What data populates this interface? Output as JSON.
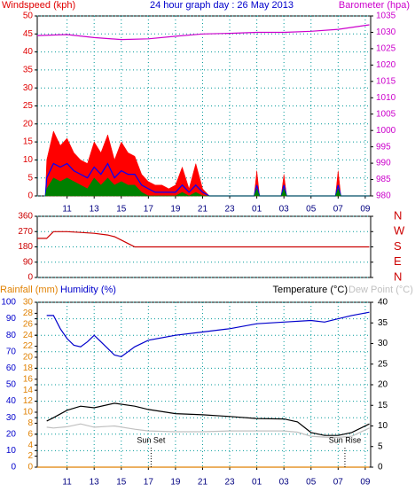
{
  "chart_data": [
    {
      "type": "line",
      "title": "24 hour graph day : 26 May 2013",
      "ylabel": "Windspeed (kph)",
      "y2label": "Barometer (hpa)",
      "ycolor": "#e00000",
      "y2color": "#cc00cc",
      "grid": true,
      "xlim": [
        8.8,
        33.4
      ],
      "xticks": [
        11,
        13,
        15,
        17,
        19,
        21,
        23,
        {
          "value": 25,
          "label": "01"
        },
        {
          "value": 27,
          "label": "03"
        },
        {
          "value": 29,
          "label": "05"
        },
        {
          "value": 31,
          "label": "07"
        },
        {
          "value": 33,
          "label": "09"
        }
      ],
      "ylim": [
        0,
        50
      ],
      "yticks": [
        0,
        5,
        10,
        15,
        20,
        25,
        30,
        35,
        40,
        45,
        50
      ],
      "y2lim": [
        980,
        1035
      ],
      "y2ticks": [
        980,
        985,
        990,
        995,
        1000,
        1005,
        1010,
        1015,
        1020,
        1025,
        1030,
        1035
      ],
      "series": [
        {
          "color": "#ff0000",
          "style": "area",
          "x": [
            9.4,
            9.5,
            10,
            10.5,
            11,
            11.5,
            12,
            12.5,
            13,
            13.5,
            14,
            14.5,
            15,
            15.5,
            16,
            16.5,
            17,
            17.5,
            18,
            18.5,
            19,
            19.5,
            20,
            20.5,
            21,
            21.5,
            22,
            24.8,
            25,
            25.2,
            26.8,
            27,
            27.2,
            30.8,
            31,
            31.2,
            33.3
          ],
          "values": [
            0,
            10,
            18,
            14,
            16,
            12,
            10,
            9,
            15,
            12,
            17,
            10,
            15,
            12,
            11,
            6,
            4,
            3,
            3,
            2,
            3,
            8,
            2,
            9,
            2,
            0,
            0,
            0,
            7,
            0,
            0,
            6,
            0,
            0,
            7,
            0,
            0
          ]
        },
        {
          "color": "#0000ff",
          "style": "line",
          "x": [
            9.4,
            9.5,
            10,
            10.5,
            11,
            11.5,
            12,
            12.5,
            13,
            13.5,
            14,
            14.5,
            15,
            15.5,
            16,
            16.5,
            17,
            17.5,
            18,
            18.5,
            19,
            19.5,
            20,
            20.5,
            21,
            21.5,
            22,
            24.8,
            25,
            25.2,
            26.8,
            27,
            27.2,
            30.8,
            31,
            31.2,
            33.3
          ],
          "values": [
            0,
            5,
            9,
            8,
            9,
            7,
            6,
            5,
            8,
            6,
            9,
            5,
            7,
            6,
            6,
            3,
            2,
            1,
            1,
            1,
            1,
            3,
            1,
            3,
            1,
            0,
            0,
            0,
            3,
            0,
            0,
            3,
            0,
            0,
            3,
            0,
            0
          ]
        },
        {
          "color": "#008000",
          "style": "area",
          "x": [
            9.4,
            9.5,
            10,
            10.5,
            11,
            11.5,
            12,
            12.5,
            13,
            13.5,
            14,
            14.5,
            15,
            15.5,
            16,
            16.5,
            17,
            17.5,
            18,
            18.5,
            19,
            19.5,
            20,
            20.5,
            21,
            21.5,
            22,
            24.8,
            25,
            25.2,
            26.8,
            27,
            27.2,
            30.8,
            31,
            31.2,
            33.3
          ],
          "values": [
            0,
            2,
            5,
            4,
            5,
            4,
            3,
            2,
            5,
            3,
            5,
            3,
            4,
            3,
            3,
            1,
            0,
            0,
            0,
            0,
            0,
            1,
            0,
            1,
            0,
            0,
            0,
            0,
            2,
            0,
            0,
            2,
            0,
            0,
            2,
            0,
            0
          ]
        },
        {
          "color": "#cc00cc",
          "style": "line",
          "axis": "y2",
          "x": [
            8.8,
            11,
            13,
            15,
            17,
            19,
            21,
            23,
            25,
            27,
            29,
            31,
            33.3
          ],
          "values": [
            1029,
            1029.3,
            1028.4,
            1027.8,
            1028,
            1028.8,
            1029.5,
            1029.7,
            1030,
            1030,
            1030.3,
            1030.9,
            1032.3
          ]
        }
      ]
    },
    {
      "type": "line",
      "ycolor": "#cc0000",
      "y2color": "#cc0000",
      "grid": true,
      "xlim": [
        8.8,
        33.4
      ],
      "ylim": [
        0,
        360
      ],
      "yticks": [
        0,
        90,
        180,
        270,
        360
      ],
      "y2lim": [
        0,
        360
      ],
      "y2ticks": [
        {
          "value": 360,
          "label": "N"
        },
        {
          "value": 270,
          "label": "W"
        },
        {
          "value": 180,
          "label": "S"
        },
        {
          "value": 90,
          "label": "E"
        },
        {
          "value": 0,
          "label": "N"
        }
      ],
      "series": [
        {
          "color": "#cc0000",
          "style": "line",
          "x": [
            8.8,
            9.5,
            10,
            11,
            12,
            13,
            14,
            14.5,
            15,
            15.5,
            16,
            17,
            19,
            33.3
          ],
          "values": [
            230,
            230,
            270,
            270,
            265,
            260,
            250,
            240,
            220,
            200,
            180,
            180,
            180,
            180
          ]
        }
      ]
    },
    {
      "type": "line",
      "ycolor": "#0000cc",
      "y2color": "#000000",
      "y3color": "#e08000",
      "grid": true,
      "xlim": [
        8.8,
        33.4
      ],
      "xticks": [
        11,
        13,
        15,
        17,
        19,
        21,
        23,
        {
          "value": 25,
          "label": "01"
        },
        {
          "value": 27,
          "label": "03"
        },
        {
          "value": 29,
          "label": "05"
        },
        {
          "value": 31,
          "label": "07"
        },
        {
          "value": 33,
          "label": "09"
        }
      ],
      "ylim": [
        0,
        100
      ],
      "yticks": [
        0,
        10,
        20,
        30,
        40,
        50,
        60,
        70,
        80,
        90,
        100
      ],
      "y2lim": [
        0,
        40
      ],
      "y2ticks": [
        0,
        5,
        10,
        15,
        20,
        25,
        30,
        35,
        40
      ],
      "y3lim": [
        0,
        30
      ],
      "y3ticks": [
        0,
        2,
        4,
        6,
        8,
        10,
        12,
        14,
        16,
        18,
        20,
        22,
        24,
        26,
        28,
        30
      ],
      "series": [
        {
          "name": "Rainfall (mm)",
          "color": "#e08000",
          "style": "line",
          "axis": "y3",
          "x": [
            8.8,
            33.3
          ],
          "values": [
            0,
            0
          ]
        },
        {
          "name": "Humidity (%)",
          "color": "#0000cc",
          "style": "line",
          "x": [
            9.5,
            10,
            10.5,
            11,
            11.5,
            12,
            12.5,
            13,
            13.5,
            14,
            14.5,
            15,
            16,
            17,
            19,
            21,
            23,
            25,
            27,
            29,
            30,
            31,
            32,
            33.3
          ],
          "values": [
            92,
            92,
            84,
            78,
            74,
            73,
            76,
            80,
            76,
            72,
            68,
            67,
            73,
            77,
            80,
            82,
            84,
            87,
            88,
            89,
            88,
            90,
            92,
            94
          ]
        },
        {
          "name": "Temperature (°C)",
          "color": "#000000",
          "style": "line",
          "axis": "y2",
          "x": [
            9.5,
            10,
            11,
            12,
            13,
            14.5,
            16,
            17,
            19,
            21,
            23,
            25,
            27,
            28,
            29,
            30,
            31,
            32,
            33.3
          ],
          "values": [
            11.2,
            12,
            13.8,
            14.8,
            14.4,
            15.5,
            14.8,
            14,
            13,
            12.7,
            12.3,
            11.8,
            11.7,
            11,
            8.4,
            7.7,
            7.7,
            8.4,
            10.5
          ]
        },
        {
          "name": "Dew Point (°C)",
          "color": "#c0c0c0",
          "style": "line",
          "axis": "y2",
          "x": [
            9.5,
            10,
            11,
            12,
            13,
            14.5,
            16,
            17,
            19,
            21,
            23,
            25,
            27,
            28,
            29,
            30,
            31,
            32,
            33.3
          ],
          "values": [
            9.7,
            9.5,
            9.8,
            10.5,
            9.7,
            10,
            9.2,
            8.8,
            8.6,
            8.6,
            8.8,
            8.8,
            8.8,
            8.5,
            7.5,
            7.3,
            7.2,
            7.5,
            9.5
          ]
        }
      ],
      "annotations": [
        {
          "text": "Sun Set",
          "x": 17.2
        },
        {
          "text": "Sun Rise",
          "x": 31.5
        }
      ]
    }
  ]
}
